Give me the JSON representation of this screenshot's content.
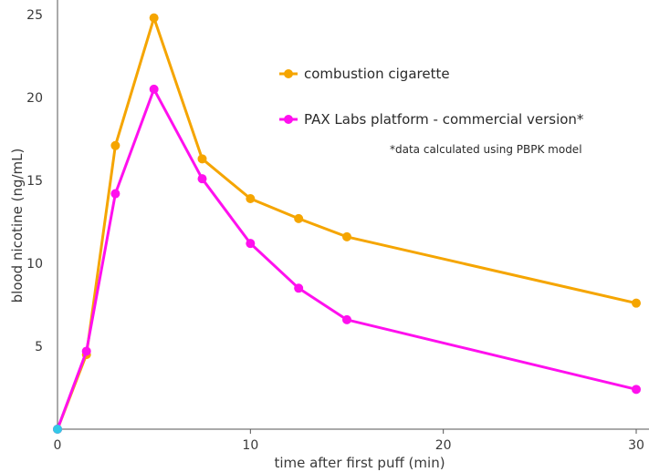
{
  "chart_data": {
    "type": "line",
    "xlabel": "time after first puff (min)",
    "ylabel": "blood nicotine (ng/mL)",
    "xlim": [
      0,
      30
    ],
    "ylim": [
      0,
      25
    ],
    "xticks": [
      0,
      10,
      20,
      30
    ],
    "yticks": [
      5,
      10,
      15,
      20,
      25
    ],
    "grid": false,
    "legend_position": "top-right",
    "note": "*data calculated using PBPK model",
    "series": [
      {
        "name": "combustion cigarette",
        "color": "#f5a500",
        "x": [
          0,
          1.5,
          3,
          5,
          7.5,
          10,
          12.5,
          15,
          30
        ],
        "y": [
          0,
          4.5,
          17.1,
          24.8,
          16.3,
          13.9,
          12.7,
          11.6,
          7.6
        ]
      },
      {
        "name": "PAX Labs platform - commercial version*",
        "color": "#ff10ee",
        "x": [
          0,
          1.5,
          3,
          5,
          7.5,
          10,
          12.5,
          15,
          30
        ],
        "y": [
          0,
          4.7,
          14.2,
          20.5,
          15.1,
          11.2,
          8.5,
          6.6,
          2.4
        ]
      }
    ],
    "origin_marker_color": "#33c8e8"
  }
}
